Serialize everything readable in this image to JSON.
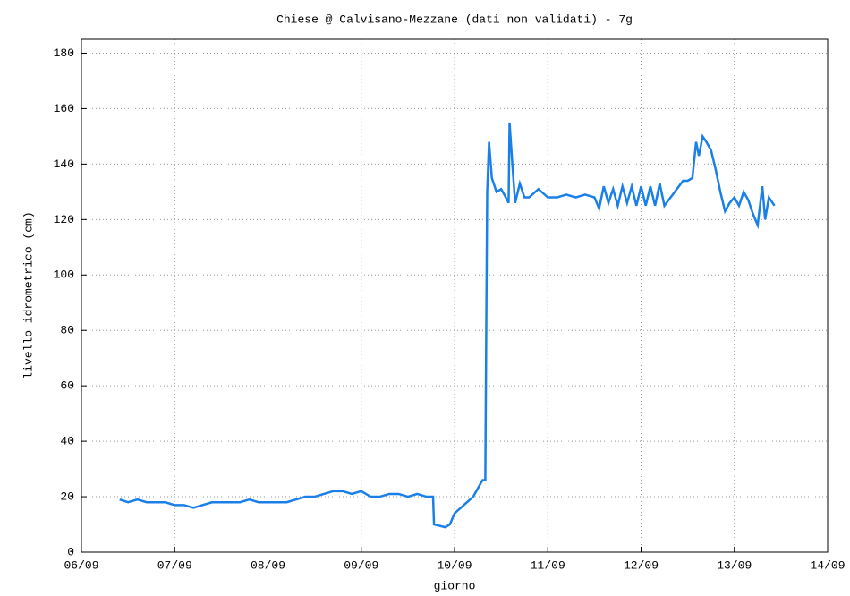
{
  "chart_data": {
    "type": "line",
    "title": "Chiese @ Calvisano-Mezzane (dati non validati) - 7g",
    "xlabel": "giorno",
    "ylabel": "livello idrometrico (cm)",
    "x": [
      0.41,
      0.5,
      0.6,
      0.7,
      0.8,
      0.9,
      1.0,
      1.1,
      1.2,
      1.3,
      1.4,
      1.5,
      1.6,
      1.7,
      1.8,
      1.9,
      2.0,
      2.1,
      2.2,
      2.3,
      2.4,
      2.5,
      2.6,
      2.7,
      2.8,
      2.9,
      3.0,
      3.1,
      3.2,
      3.3,
      3.4,
      3.5,
      3.6,
      3.7,
      3.77,
      3.78,
      3.9,
      3.95,
      4.0,
      4.1,
      4.2,
      4.25,
      4.3,
      4.33,
      4.34,
      4.35,
      4.37,
      4.4,
      4.45,
      4.5,
      4.55,
      4.58,
      4.59,
      4.62,
      4.65,
      4.7,
      4.75,
      4.8,
      4.9,
      5.0,
      5.1,
      5.2,
      5.3,
      5.4,
      5.5,
      5.55,
      5.6,
      5.65,
      5.7,
      5.75,
      5.8,
      5.85,
      5.9,
      5.95,
      6.0,
      6.05,
      6.1,
      6.15,
      6.2,
      6.25,
      6.45,
      6.5,
      6.55,
      6.59,
      6.62,
      6.66,
      6.7,
      6.75,
      6.8,
      6.85,
      6.9,
      6.95,
      7.0,
      7.05,
      7.1,
      7.15,
      7.2,
      7.25,
      7.3,
      7.33,
      7.37,
      7.43
    ],
    "series": [
      {
        "name": "livello",
        "color": "#1a80e8",
        "values": [
          19,
          18,
          19,
          18,
          18,
          18,
          17,
          17,
          16,
          17,
          18,
          18,
          18,
          18,
          19,
          18,
          18,
          18,
          18,
          19,
          20,
          20,
          21,
          22,
          22,
          21,
          22,
          20,
          20,
          21,
          21,
          20,
          21,
          20,
          20,
          10,
          9,
          10,
          14,
          17,
          20,
          23,
          26,
          26,
          80,
          130,
          148,
          135,
          130,
          131,
          128,
          126,
          155,
          140,
          126,
          133,
          128,
          128,
          131,
          128,
          128,
          129,
          128,
          129,
          128,
          124,
          132,
          126,
          131,
          125,
          132,
          126,
          132,
          125,
          132,
          125,
          132,
          125,
          133,
          125,
          134,
          134,
          135,
          148,
          143,
          150,
          148,
          145,
          138,
          130,
          123,
          126,
          128,
          125,
          130,
          127,
          122,
          118,
          132,
          120,
          128,
          125
        ]
      }
    ],
    "xlim": [
      0,
      8
    ],
    "xticks": [
      {
        "value": 0,
        "label": "06/09"
      },
      {
        "value": 1,
        "label": "07/09"
      },
      {
        "value": 2,
        "label": "08/09"
      },
      {
        "value": 3,
        "label": "09/09"
      },
      {
        "value": 4,
        "label": "10/09"
      },
      {
        "value": 5,
        "label": "11/09"
      },
      {
        "value": 6,
        "label": "12/09"
      },
      {
        "value": 7,
        "label": "13/09"
      },
      {
        "value": 8,
        "label": "14/09"
      }
    ],
    "ylim": [
      0,
      185
    ],
    "yticks": [
      0,
      20,
      40,
      60,
      80,
      100,
      120,
      140,
      160,
      180
    ],
    "grid": true
  }
}
